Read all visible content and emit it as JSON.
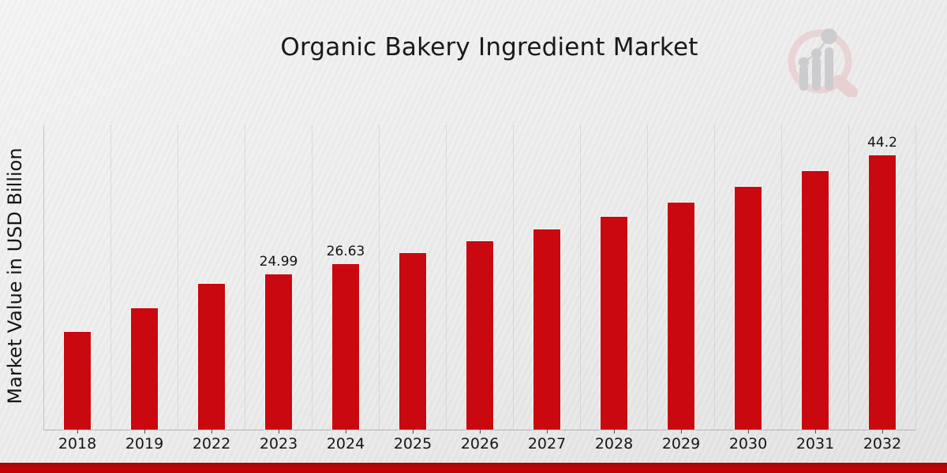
{
  "chart_data": {
    "type": "bar",
    "title": "Organic Bakery Ingredient Market",
    "xlabel": "",
    "ylabel": "Market Value in USD Billion",
    "categories": [
      "2018",
      "2019",
      "2022",
      "2023",
      "2024",
      "2025",
      "2026",
      "2027",
      "2028",
      "2029",
      "2030",
      "2031",
      "2032"
    ],
    "values": [
      15.8,
      19.5,
      23.5,
      24.99,
      26.63,
      28.4,
      30.4,
      32.3,
      34.3,
      36.6,
      39.1,
      41.7,
      44.2
    ],
    "bar_labels": [
      "",
      "",
      "",
      "24.99",
      "26.63",
      "",
      "",
      "",
      "",
      "",
      "",
      "",
      "44.2"
    ],
    "ylim": [
      0,
      49
    ],
    "grid": "vertical-dotted-between-columns",
    "legend": "none",
    "colors": {
      "bar": "#c9080f",
      "gridline": "#c6c6c6",
      "axis_line": "#b3b3b3",
      "text": "#1a1a1a",
      "footer_band": "#bd0303",
      "background_top": "#f4f4f4",
      "background_bottom": "#e3e3e3",
      "logo_ring_pink": "#ead2d3",
      "logo_bars_gray": "#c9c9cc"
    }
  },
  "icons": {
    "logo": "magnifying-glass-over-rising-bar-chart-watermark"
  }
}
